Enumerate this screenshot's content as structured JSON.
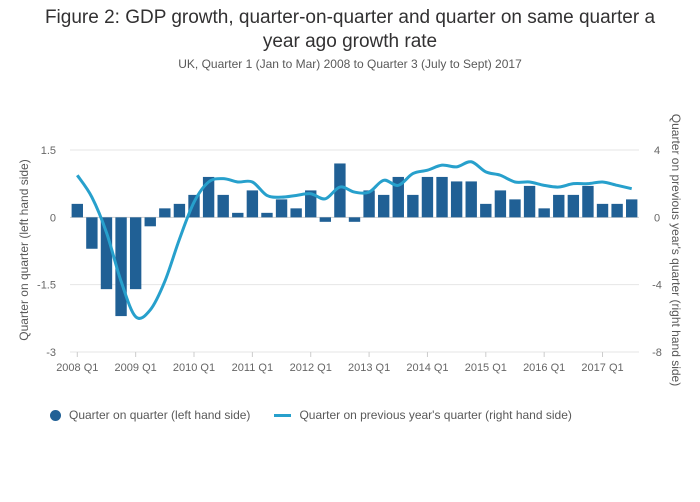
{
  "chart_data": {
    "type": "bar+line",
    "title_lines": [
      "Figure 2: GDP growth, quarter-on-quarter and quarter on same quarter a",
      "year ago growth rate"
    ],
    "subtitle": "UK, Quarter 1 (Jan to Mar) 2008 to Quarter 3 (July to Sept) 2017",
    "ylabel_left": "Quarter on quarter (left hand side)",
    "ylabel_right": "Quarter on previous year's quarter (right hand side)",
    "ylim_left": [
      -3,
      1.5
    ],
    "ylim_right": [
      -8,
      4
    ],
    "yticks_left": [
      1.5,
      0,
      -1.5,
      -3
    ],
    "yticks_left_labels": [
      "1.5",
      "0",
      "-1.5",
      "-3"
    ],
    "yticks_right": [
      4,
      0,
      -4,
      -8
    ],
    "yticks_right_labels": [
      "4",
      "0",
      "-4",
      "-8"
    ],
    "x_tick_labels": [
      "2008 Q1",
      "2009 Q1",
      "2010 Q1",
      "2011 Q1",
      "2012 Q1",
      "2013 Q1",
      "2014 Q1",
      "2015 Q1",
      "2016 Q1",
      "2017 Q1"
    ],
    "categories": [
      "2008 Q1",
      "2008 Q2",
      "2008 Q3",
      "2008 Q4",
      "2009 Q1",
      "2009 Q2",
      "2009 Q3",
      "2009 Q4",
      "2010 Q1",
      "2010 Q2",
      "2010 Q3",
      "2010 Q4",
      "2011 Q1",
      "2011 Q2",
      "2011 Q3",
      "2011 Q4",
      "2012 Q1",
      "2012 Q2",
      "2012 Q3",
      "2012 Q4",
      "2013 Q1",
      "2013 Q2",
      "2013 Q3",
      "2013 Q4",
      "2014 Q1",
      "2014 Q2",
      "2014 Q3",
      "2014 Q4",
      "2015 Q1",
      "2015 Q2",
      "2015 Q3",
      "2015 Q4",
      "2016 Q1",
      "2016 Q2",
      "2016 Q3",
      "2016 Q4",
      "2017 Q1",
      "2017 Q2",
      "2017 Q3"
    ],
    "series": [
      {
        "name": "Quarter on quarter (left hand side)",
        "type": "bar",
        "axis": "left",
        "color": "#206095",
        "values": [
          0.3,
          -0.7,
          -1.6,
          -2.2,
          -1.6,
          -0.2,
          0.2,
          0.3,
          0.5,
          0.9,
          0.5,
          0.1,
          0.6,
          0.1,
          0.4,
          0.2,
          0.6,
          -0.1,
          1.2,
          -0.1,
          0.6,
          0.5,
          0.9,
          0.5,
          0.9,
          0.9,
          0.8,
          0.8,
          0.3,
          0.6,
          0.4,
          0.7,
          0.2,
          0.5,
          0.5,
          0.7,
          0.3,
          0.3,
          0.4
        ]
      },
      {
        "name": "Quarter on previous year's quarter (right hand side)",
        "type": "line",
        "axis": "right",
        "color": "#27a0cc",
        "values": [
          2.5,
          1.2,
          -0.9,
          -3.8,
          -5.9,
          -5.5,
          -3.8,
          -1.3,
          0.9,
          2.1,
          2.3,
          2.1,
          2.1,
          1.3,
          1.2,
          1.3,
          1.4,
          1.1,
          1.8,
          1.5,
          1.5,
          2.2,
          1.9,
          2.6,
          2.8,
          3.1,
          3.0,
          3.3,
          2.7,
          2.5,
          2.1,
          2.1,
          1.9,
          1.8,
          2.0,
          2.0,
          2.1,
          1.9,
          1.7
        ]
      }
    ],
    "legend_position": "bottom",
    "grid": true
  }
}
